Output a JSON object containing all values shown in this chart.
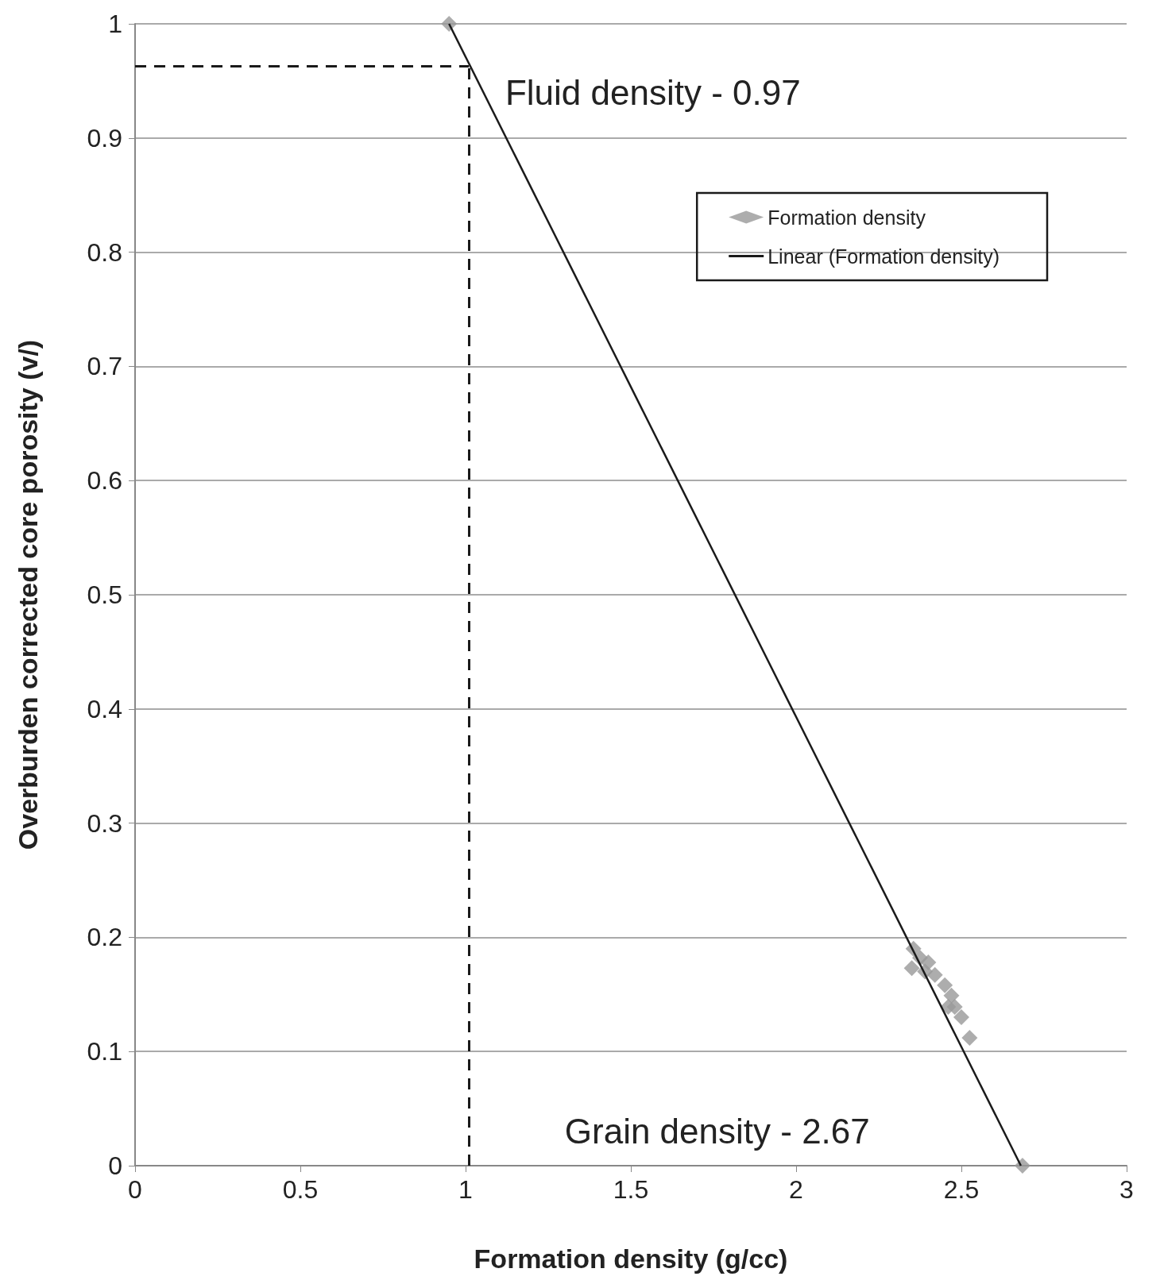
{
  "chart_data": {
    "type": "scatter",
    "xlabel": "Formation density (g/cc)",
    "ylabel": "Overburden corrected core porosity (v/)",
    "xlim": [
      0,
      3
    ],
    "xticks": [
      0,
      0.5,
      1,
      1.5,
      2,
      2.5,
      3
    ],
    "ylim": [
      0,
      1
    ],
    "yticks": [
      0,
      0.1,
      0.2,
      0.3,
      0.4,
      0.5,
      0.6,
      0.7,
      0.8,
      0.9,
      1
    ],
    "grid": "y",
    "legend": "top right",
    "series": [
      {
        "name": "Formation density",
        "marker": "diamond",
        "color": "#999999",
        "x": [
          0.95,
          2.355,
          2.35,
          2.375,
          2.4,
          2.39,
          2.42,
          2.45,
          2.47,
          2.46,
          2.48,
          2.5,
          2.525,
          2.685
        ],
        "values": [
          1,
          0.19,
          0.173,
          0.182,
          0.178,
          0.17,
          0.167,
          0.158,
          0.149,
          0.139,
          0.139,
          0.13,
          0.112,
          0
        ]
      },
      {
        "name": "Linear (Formation density)",
        "type": "line",
        "marker": "none",
        "color": "#1a1a1a",
        "x": [
          0.95,
          2.68
        ],
        "values": [
          1,
          0
        ]
      }
    ],
    "ref_lines": [
      {
        "axis": "y",
        "value": 0.963,
        "color": "#1a1a1a",
        "line_style": "dashed"
      },
      {
        "axis": "x",
        "value": 1.01,
        "color": "#1a1a1a",
        "line_style": "dashed"
      }
    ],
    "annotations": [
      "Fluid density - 0.97",
      "Grain density - 2.67"
    ]
  }
}
